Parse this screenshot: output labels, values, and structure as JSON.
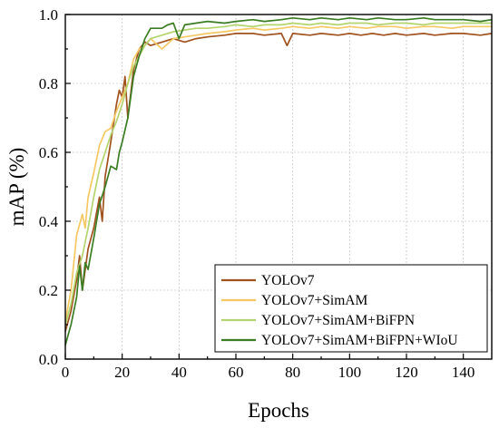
{
  "chart_data": {
    "type": "line",
    "title": "",
    "xlabel": "Epochs",
    "ylabel": "mAP (%)",
    "xlim": [
      0,
      150
    ],
    "ylim": [
      0.0,
      1.0
    ],
    "xticks": [
      0,
      20,
      40,
      60,
      80,
      100,
      120,
      140
    ],
    "xtick_labels": [
      "0",
      "20",
      "40",
      "60",
      "80",
      "100",
      "120",
      "140"
    ],
    "yticks": [
      0.0,
      0.2,
      0.4,
      0.6,
      0.8,
      1.0
    ],
    "ytick_labels": [
      "0.0",
      "0.2",
      "0.4",
      "0.6",
      "0.8",
      "1.0"
    ],
    "grid": true,
    "legend_position": "bottom-right",
    "series": [
      {
        "name": "YOLOv7",
        "color": "#a0521e",
        "x": [
          0,
          2,
          4,
          5,
          6,
          8,
          10,
          12,
          13,
          14,
          16,
          18,
          19,
          20,
          21,
          22,
          24,
          26,
          28,
          30,
          34,
          38,
          42,
          46,
          50,
          56,
          60,
          66,
          70,
          76,
          78,
          80,
          86,
          90,
          96,
          100,
          104,
          108,
          112,
          116,
          120,
          126,
          130,
          136,
          140,
          146,
          150
        ],
        "y": [
          0.08,
          0.14,
          0.23,
          0.3,
          0.2,
          0.32,
          0.38,
          0.47,
          0.4,
          0.53,
          0.63,
          0.74,
          0.78,
          0.76,
          0.82,
          0.7,
          0.84,
          0.9,
          0.92,
          0.91,
          0.92,
          0.93,
          0.92,
          0.93,
          0.935,
          0.94,
          0.945,
          0.945,
          0.94,
          0.945,
          0.91,
          0.945,
          0.94,
          0.945,
          0.94,
          0.945,
          0.94,
          0.945,
          0.94,
          0.945,
          0.94,
          0.945,
          0.94,
          0.945,
          0.945,
          0.94,
          0.945
        ]
      },
      {
        "name": "YOLOv7+SimAM",
        "color": "#f5c863",
        "x": [
          0,
          2,
          4,
          6,
          7,
          8,
          10,
          12,
          14,
          16,
          18,
          20,
          22,
          24,
          26,
          28,
          30,
          34,
          38,
          42,
          46,
          50,
          56,
          60,
          66,
          70,
          76,
          80,
          86,
          90,
          96,
          100,
          106,
          110,
          116,
          120,
          126,
          130,
          136,
          140,
          146,
          150
        ],
        "y": [
          0.11,
          0.2,
          0.36,
          0.42,
          0.38,
          0.47,
          0.54,
          0.62,
          0.66,
          0.67,
          0.72,
          0.76,
          0.8,
          0.87,
          0.9,
          0.91,
          0.93,
          0.9,
          0.93,
          0.935,
          0.94,
          0.945,
          0.95,
          0.955,
          0.96,
          0.955,
          0.96,
          0.965,
          0.96,
          0.965,
          0.96,
          0.965,
          0.96,
          0.965,
          0.965,
          0.96,
          0.965,
          0.965,
          0.96,
          0.965,
          0.965,
          0.965
        ]
      },
      {
        "name": "YOLOv7+SimAM+BiFPN",
        "color": "#b4d46e",
        "x": [
          0,
          2,
          4,
          6,
          8,
          10,
          12,
          14,
          16,
          18,
          20,
          22,
          24,
          26,
          28,
          30,
          34,
          38,
          42,
          46,
          50,
          56,
          60,
          66,
          70,
          76,
          80,
          86,
          90,
          96,
          100,
          106,
          110,
          116,
          120,
          126,
          130,
          136,
          140,
          146,
          150
        ],
        "y": [
          0.1,
          0.16,
          0.25,
          0.3,
          0.38,
          0.47,
          0.55,
          0.6,
          0.65,
          0.69,
          0.74,
          0.8,
          0.85,
          0.88,
          0.91,
          0.93,
          0.94,
          0.95,
          0.955,
          0.96,
          0.96,
          0.965,
          0.97,
          0.965,
          0.97,
          0.97,
          0.975,
          0.97,
          0.975,
          0.97,
          0.975,
          0.975,
          0.97,
          0.975,
          0.975,
          0.97,
          0.975,
          0.975,
          0.975,
          0.975,
          0.975
        ]
      },
      {
        "name": "YOLOv7+SimAM+BiFPN+WIoU",
        "color": "#3b7d23",
        "x": [
          0,
          1,
          2,
          4,
          5,
          6,
          7,
          8,
          10,
          12,
          14,
          16,
          18,
          19,
          20,
          22,
          24,
          26,
          28,
          30,
          34,
          36,
          38,
          40,
          42,
          46,
          50,
          56,
          60,
          66,
          70,
          76,
          80,
          86,
          90,
          96,
          100,
          106,
          110,
          116,
          120,
          126,
          130,
          136,
          140,
          146,
          150
        ],
        "y": [
          0.04,
          0.07,
          0.1,
          0.18,
          0.27,
          0.2,
          0.28,
          0.26,
          0.35,
          0.45,
          0.5,
          0.56,
          0.55,
          0.6,
          0.63,
          0.7,
          0.82,
          0.88,
          0.93,
          0.96,
          0.96,
          0.97,
          0.975,
          0.93,
          0.97,
          0.975,
          0.98,
          0.975,
          0.98,
          0.985,
          0.98,
          0.985,
          0.99,
          0.985,
          0.99,
          0.985,
          0.99,
          0.985,
          0.99,
          0.985,
          0.985,
          0.99,
          0.985,
          0.985,
          0.985,
          0.98,
          0.985
        ]
      }
    ]
  }
}
